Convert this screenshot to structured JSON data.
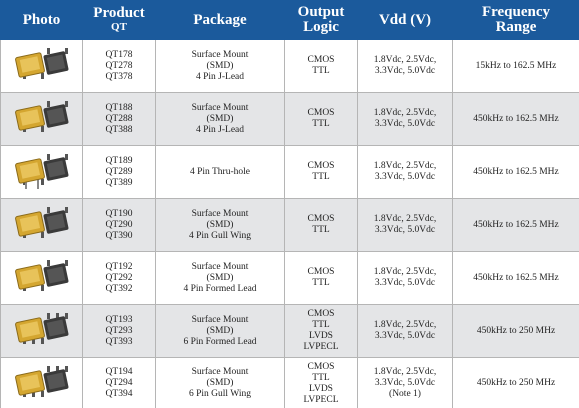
{
  "header": {
    "photo": "Photo",
    "product": "Product",
    "product_sub": "QT",
    "package": "Package",
    "logic": [
      "Output",
      "Logic"
    ],
    "vdd": "Vdd (V)",
    "frequency": [
      "Frequency",
      "Range"
    ]
  },
  "table": {
    "rows": [
      {
        "products": [
          "QT178",
          "QT278",
          "QT378"
        ],
        "package": [
          "Surface Mount",
          "(SMD)",
          "4 Pin J-Lead"
        ],
        "logic": [
          "CMOS",
          "TTL"
        ],
        "vdd": [
          "1.8Vdc, 2.5Vdc,",
          "3.3Vdc, 5.0Vdc"
        ],
        "frequency": "15kHz to 162.5 MHz"
      },
      {
        "products": [
          "QT188",
          "QT288",
          "QT388"
        ],
        "package": [
          "Surface Mount",
          "(SMD)",
          "4 Pin J-Lead"
        ],
        "logic": [
          "CMOS",
          "TTL"
        ],
        "vdd": [
          "1.8Vdc, 2.5Vdc,",
          "3.3Vdc, 5.0Vdc"
        ],
        "frequency": "450kHz to 162.5 MHz"
      },
      {
        "products": [
          "QT189",
          "QT289",
          "QT389"
        ],
        "package": [
          "4 Pin Thru-hole"
        ],
        "logic": [
          "CMOS",
          "TTL"
        ],
        "vdd": [
          "1.8Vdc, 2.5Vdc,",
          "3.3Vdc, 5.0Vdc"
        ],
        "frequency": "450kHz to 162.5 MHz"
      },
      {
        "products": [
          "QT190",
          "QT290",
          "QT390"
        ],
        "package": [
          "Surface Mount",
          "(SMD)",
          "4 Pin Gull Wing"
        ],
        "logic": [
          "CMOS",
          "TTL"
        ],
        "vdd": [
          "1.8Vdc, 2.5Vdc,",
          "3.3Vdc, 5.0Vdc"
        ],
        "frequency": "450kHz to 162.5 MHz"
      },
      {
        "products": [
          "QT192",
          "QT292",
          "QT392"
        ],
        "package": [
          "Surface Mount",
          "(SMD)",
          "4 Pin Formed Lead"
        ],
        "logic": [
          "CMOS",
          "TTL"
        ],
        "vdd": [
          "1.8Vdc, 2.5Vdc,",
          "3.3Vdc, 5.0Vdc"
        ],
        "frequency": "450kHz to 162.5 MHz"
      },
      {
        "products": [
          "QT193",
          "QT293",
          "QT393"
        ],
        "package": [
          "Surface Mount",
          "(SMD)",
          "6 Pin Formed Lead"
        ],
        "logic": [
          "CMOS",
          "TTL",
          "LVDS",
          "LVPECL"
        ],
        "vdd": [
          "1.8Vdc, 2.5Vdc,",
          "3.3Vdc, 5.0Vdc"
        ],
        "frequency": "450kHz to 250 MHz"
      },
      {
        "products": [
          "QT194",
          "QT294",
          "QT394"
        ],
        "package": [
          "Surface Mount",
          "(SMD)",
          "6 Pin Gull Wing"
        ],
        "logic": [
          "CMOS",
          "TTL",
          "LVDS",
          "LVPECL"
        ],
        "vdd": [
          "1.8Vdc, 2.5Vdc,",
          "3.3Vdc, 5.0Vdc",
          "(Note 1)"
        ],
        "frequency": "450kHz to 250 MHz"
      }
    ]
  }
}
